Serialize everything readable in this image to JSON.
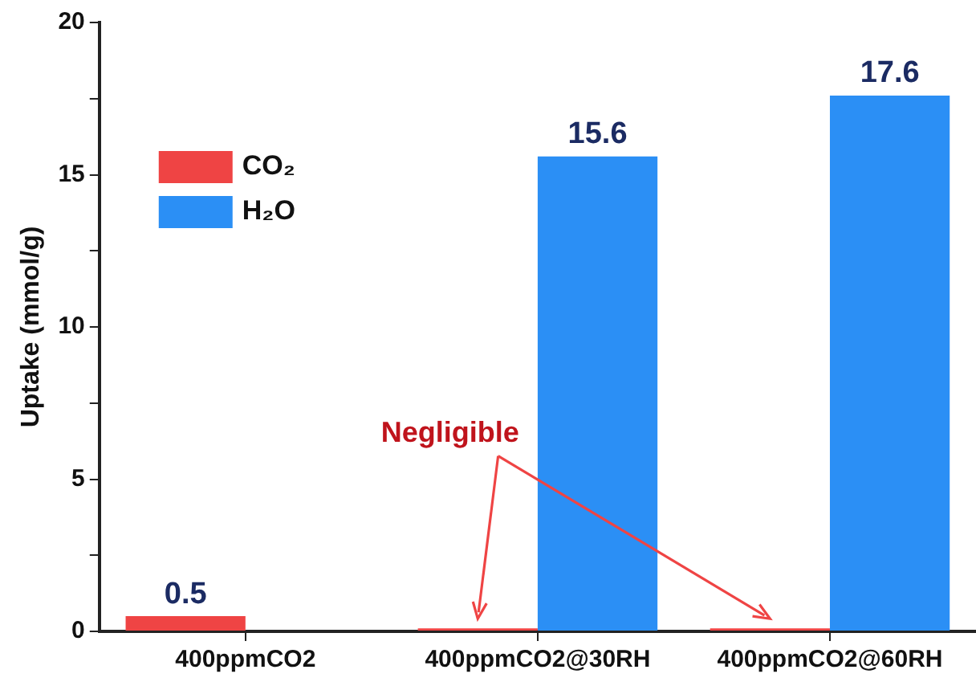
{
  "chart_data": {
    "type": "bar",
    "ylabel": "Uptake (mmol/g)",
    "categories": [
      "400ppmCO2",
      "400ppmCO2@30RH",
      "400ppmCO2@60RH"
    ],
    "series": [
      {
        "name": "CO₂",
        "color": "#ef4444",
        "values": [
          0.5,
          0.1,
          0.1
        ],
        "value_labels": [
          "0.5",
          null,
          null
        ]
      },
      {
        "name": "H₂O",
        "color": "#2b8ff5",
        "values": [
          0,
          15.6,
          17.6
        ],
        "value_labels": [
          null,
          "15.6",
          "17.6"
        ]
      }
    ],
    "ylim": [
      0,
      20
    ],
    "yticks": [
      0,
      {
        "value": 2.5,
        "label": null
      },
      5,
      {
        "value": 7.5,
        "label": null
      },
      10,
      {
        "value": 12.5,
        "label": null
      },
      15,
      {
        "value": 17.5,
        "label": null
      },
      20
    ],
    "grid": false,
    "legend": "top left",
    "annotations": [
      "Negligible"
    ]
  }
}
